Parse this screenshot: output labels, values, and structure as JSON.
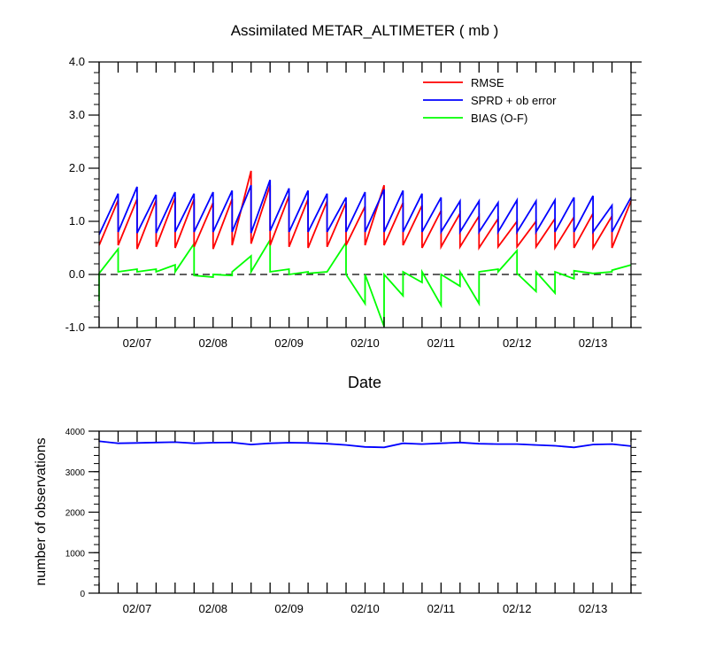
{
  "chart_data": [
    {
      "type": "line",
      "title": "Assimilated METAR_ALTIMETER ( mb )",
      "xlabel": "Date",
      "ylabel": "",
      "xlim": [
        6.5,
        13.5
      ],
      "ylim": [
        -1.0,
        4.0
      ],
      "yticks": [
        -1.0,
        0.0,
        1.0,
        2.0,
        3.0,
        4.0
      ],
      "ytick_labels": [
        "-1.0",
        "0.0",
        "1.0",
        "2.0",
        "3.0",
        "4.0"
      ],
      "xticks": [
        7,
        8,
        9,
        10,
        11,
        12,
        13
      ],
      "xtick_labels": [
        "02/07",
        "02/08",
        "02/09",
        "02/10",
        "02/11",
        "02/12",
        "02/13"
      ],
      "legend_position": "top-right",
      "zero_line": "dashed",
      "series": [
        {
          "name": "RMSE",
          "color": "#ff0000",
          "x": [
            6.5,
            6.75,
            6.75,
            7.0,
            7.0,
            7.25,
            7.25,
            7.5,
            7.5,
            7.75,
            7.75,
            8.0,
            8.0,
            8.25,
            8.25,
            8.5,
            8.5,
            8.75,
            8.75,
            9.0,
            9.0,
            9.25,
            9.25,
            9.5,
            9.5,
            9.75,
            9.75,
            10.0,
            10.0,
            10.25,
            10.25,
            10.5,
            10.5,
            10.75,
            10.75,
            11.0,
            11.0,
            11.25,
            11.25,
            11.5,
            11.5,
            11.75,
            11.75,
            12.0,
            12.0,
            12.25,
            12.25,
            12.5,
            12.5,
            12.75,
            12.75,
            13.0,
            13.0,
            13.25,
            13.25,
            13.5
          ],
          "y": [
            0.55,
            1.4,
            0.55,
            1.42,
            0.48,
            1.4,
            0.52,
            1.45,
            0.5,
            1.42,
            0.52,
            1.35,
            0.48,
            1.42,
            0.55,
            1.95,
            0.58,
            1.68,
            0.55,
            1.48,
            0.52,
            1.42,
            0.5,
            1.38,
            0.52,
            1.35,
            0.55,
            1.28,
            0.55,
            1.68,
            0.55,
            1.35,
            0.55,
            1.3,
            0.5,
            1.2,
            0.52,
            1.15,
            0.52,
            1.1,
            0.5,
            1.05,
            0.52,
            1.0,
            0.52,
            1.0,
            0.52,
            1.05,
            0.5,
            1.08,
            0.5,
            1.15,
            0.5,
            1.1,
            0.5,
            1.38
          ]
        },
        {
          "name": "SPRD + ob error",
          "color": "#0000ff",
          "x": [
            6.5,
            6.75,
            6.75,
            7.0,
            7.0,
            7.25,
            7.25,
            7.5,
            7.5,
            7.75,
            7.75,
            8.0,
            8.0,
            8.25,
            8.25,
            8.5,
            8.5,
            8.75,
            8.75,
            9.0,
            9.0,
            9.25,
            9.25,
            9.5,
            9.5,
            9.75,
            9.75,
            10.0,
            10.0,
            10.25,
            10.25,
            10.5,
            10.5,
            10.75,
            10.75,
            11.0,
            11.0,
            11.25,
            11.25,
            11.5,
            11.5,
            11.75,
            11.75,
            12.0,
            12.0,
            12.25,
            12.25,
            12.5,
            12.5,
            12.75,
            12.75,
            13.0,
            13.0,
            13.25,
            13.25,
            13.5
          ],
          "y": [
            0.75,
            1.52,
            0.8,
            1.65,
            0.78,
            1.5,
            0.78,
            1.55,
            0.8,
            1.52,
            0.8,
            1.55,
            0.8,
            1.58,
            0.8,
            1.68,
            0.78,
            1.78,
            0.82,
            1.62,
            0.8,
            1.58,
            0.8,
            1.52,
            0.8,
            1.45,
            0.8,
            1.55,
            0.8,
            1.6,
            0.8,
            1.58,
            0.8,
            1.52,
            0.8,
            1.45,
            0.8,
            1.38,
            0.8,
            1.38,
            0.8,
            1.35,
            0.8,
            1.4,
            0.8,
            1.38,
            0.8,
            1.4,
            0.8,
            1.45,
            0.8,
            1.48,
            0.8,
            1.3,
            0.8,
            1.45
          ]
        },
        {
          "name": "BIAS (O-F)",
          "color": "#00ff00",
          "x": [
            6.5,
            6.5,
            6.75,
            6.75,
            7.0,
            7.0,
            7.25,
            7.25,
            7.5,
            7.5,
            7.75,
            7.75,
            8.0,
            8.0,
            8.25,
            8.25,
            8.5,
            8.5,
            8.75,
            8.75,
            9.0,
            9.0,
            9.25,
            9.25,
            9.5,
            9.5,
            9.75,
            9.75,
            10.0,
            10.0,
            10.25,
            10.25,
            10.5,
            10.5,
            10.75,
            10.75,
            11.0,
            11.0,
            11.25,
            11.25,
            11.5,
            11.5,
            11.75,
            11.75,
            12.0,
            12.0,
            12.25,
            12.25,
            12.5,
            12.5,
            12.75,
            12.75,
            13.0,
            13.0,
            13.25,
            13.25,
            13.5
          ],
          "y": [
            -0.5,
            0.02,
            0.48,
            0.05,
            0.1,
            0.05,
            0.1,
            0.05,
            0.18,
            0.05,
            0.58,
            -0.02,
            -0.05,
            0.0,
            -0.02,
            0.05,
            0.35,
            0.05,
            0.65,
            0.05,
            0.1,
            0.0,
            0.05,
            0.02,
            0.05,
            0.05,
            0.6,
            0.0,
            -0.55,
            0.0,
            -0.98,
            0.0,
            -0.4,
            0.05,
            -0.15,
            0.05,
            -0.58,
            0.0,
            -0.22,
            0.05,
            -0.55,
            0.05,
            0.1,
            0.05,
            0.45,
            0.02,
            -0.32,
            0.05,
            -0.35,
            0.05,
            -0.08,
            0.07,
            0.02,
            0.02,
            0.05,
            0.08,
            0.18
          ]
        }
      ]
    },
    {
      "type": "line",
      "title": "",
      "xlabel": "",
      "ylabel": "number of observations",
      "xlim": [
        6.5,
        13.5
      ],
      "ylim": [
        0,
        4000
      ],
      "yticks": [
        0,
        1000,
        2000,
        3000,
        4000
      ],
      "ytick_labels": [
        "0",
        "1000",
        "2000",
        "3000",
        "4000"
      ],
      "xticks": [
        7,
        8,
        9,
        10,
        11,
        12,
        13
      ],
      "xtick_labels": [
        "02/07",
        "02/08",
        "02/09",
        "02/10",
        "02/11",
        "02/12",
        "02/13"
      ],
      "series": [
        {
          "color": "#0000ff",
          "x": [
            6.5,
            6.75,
            7.0,
            7.25,
            7.5,
            7.75,
            8.0,
            8.25,
            8.5,
            8.75,
            9.0,
            9.25,
            9.5,
            9.75,
            10.0,
            10.25,
            10.5,
            10.75,
            11.0,
            11.25,
            11.5,
            11.75,
            12.0,
            12.25,
            12.5,
            12.75,
            13.0,
            13.25,
            13.5
          ],
          "y": [
            3750,
            3700,
            3710,
            3720,
            3730,
            3700,
            3715,
            3720,
            3670,
            3700,
            3715,
            3710,
            3690,
            3660,
            3610,
            3600,
            3700,
            3680,
            3700,
            3720,
            3690,
            3680,
            3680,
            3660,
            3640,
            3600,
            3670,
            3680,
            3630
          ]
        }
      ]
    }
  ]
}
